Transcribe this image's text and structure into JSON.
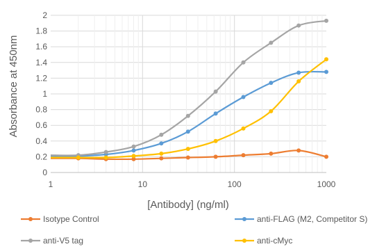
{
  "chart_data": {
    "type": "line",
    "xlabel": "[Antibody] (ng/ml)",
    "ylabel": "Absorbance at 450nm",
    "xscale": "log",
    "xlim": [
      1,
      1000
    ],
    "ylim": [
      0,
      2
    ],
    "x_ticks": [
      "1",
      "10",
      "100",
      "1000"
    ],
    "y_ticks": [
      "0",
      "0.2",
      "0.4",
      "0.6",
      "0.8",
      "1",
      "1.2",
      "1.4",
      "1.6",
      "1.8",
      "2"
    ],
    "grid": true,
    "legend_position": "bottom",
    "x": [
      2,
      4,
      8,
      16,
      31.25,
      62.5,
      125,
      250,
      500,
      1000
    ],
    "series": [
      {
        "name": "Isotype Control",
        "color": "#ED7D31",
        "values": [
          0.18,
          0.17,
          0.17,
          0.18,
          0.19,
          0.2,
          0.22,
          0.24,
          0.28,
          0.2
        ]
      },
      {
        "name": "anti-FLAG (M2, Competitor S)",
        "color": "#5B9BD5",
        "values": [
          0.21,
          0.23,
          0.28,
          0.37,
          0.52,
          0.75,
          0.96,
          1.14,
          1.27,
          1.28
        ]
      },
      {
        "name": "anti-V5 tag",
        "color": "#A5A5A5",
        "values": [
          0.22,
          0.26,
          0.33,
          0.48,
          0.72,
          1.03,
          1.4,
          1.65,
          1.87,
          1.93
        ]
      },
      {
        "name": "anti-cMyc",
        "color": "#FFC000",
        "values": [
          0.19,
          0.19,
          0.21,
          0.24,
          0.3,
          0.4,
          0.56,
          0.78,
          1.16,
          1.44
        ]
      }
    ],
    "x_start_value": 1,
    "y_start_series_value": 0.19
  }
}
